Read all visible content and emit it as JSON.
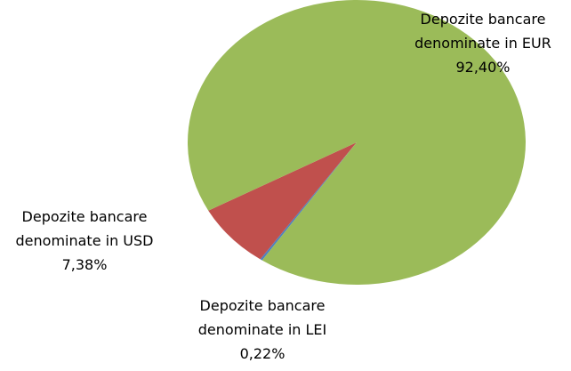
{
  "chart_data": {
    "type": "pie",
    "categories": [
      "Depozite bancare denominate in LEI",
      "Depozite bancare denominate in USD",
      "Depozite bancare denominate in EUR"
    ],
    "values": [
      0.22,
      7.38,
      92.4
    ],
    "value_labels": [
      "0,22%",
      "7,38%",
      "92,40%"
    ],
    "colors": [
      "#4f81bd",
      "#c0504d",
      "#9bbb59"
    ]
  }
}
